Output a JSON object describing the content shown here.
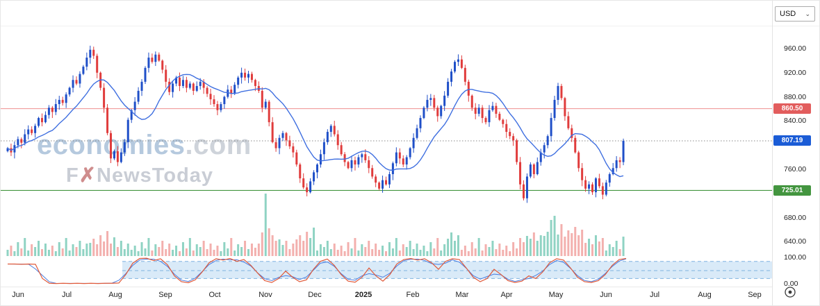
{
  "header": {
    "currency": "USD"
  },
  "watermark": {
    "brand": "economies",
    "brand_suffix": ".com",
    "tagline_f": "F",
    "tagline_x": "✗",
    "tagline_rest": "NewsToday"
  },
  "chart_data": {
    "type": "candlestick",
    "title": "",
    "xlabel": "",
    "ylabel": "",
    "price_levels": {
      "resistance": 860.5,
      "current": 807.19,
      "support": 725.01
    },
    "badges": [
      {
        "label": "860.50",
        "value": 860.5,
        "color_key": "resistance_badge"
      },
      {
        "label": "807.19",
        "value": 807.19,
        "color_key": "current_badge"
      },
      {
        "label": "725.01",
        "value": 725.01,
        "color_key": "support_badge"
      }
    ],
    "y_axis": {
      "price_labels": [
        "960.00",
        "920.00",
        "880.00",
        "840.00",
        "760.00",
        "680.00",
        "640.00"
      ],
      "price_values": [
        960,
        920,
        880,
        840,
        760,
        680,
        640
      ],
      "oscillator_labels": [
        "100.00",
        "0.00"
      ],
      "oscillator_values": [
        100,
        0
      ],
      "ylim": [
        620,
        990
      ]
    },
    "x_axis": {
      "labels": [
        "Jun",
        "Jul",
        "Aug",
        "Sep",
        "Oct",
        "Nov",
        "Dec",
        "2025",
        "Feb",
        "Mar",
        "Apr",
        "May",
        "Jun",
        "Jul",
        "Aug",
        "Sep"
      ],
      "positions": [
        25,
        95,
        165,
        237,
        308,
        381,
        452,
        522,
        593,
        664,
        728,
        799,
        871,
        941,
        1013,
        1085
      ]
    },
    "first_open": 790,
    "closes": [
      795,
      788,
      800,
      810,
      804,
      818,
      826,
      820,
      832,
      845,
      838,
      850,
      862,
      855,
      868,
      875,
      870,
      884,
      895,
      908,
      902,
      918,
      930,
      945,
      958,
      948,
      920,
      895,
      862,
      820,
      778,
      790,
      772,
      788,
      805,
      842,
      858,
      872,
      890,
      905,
      928,
      945,
      938,
      950,
      940,
      925,
      905,
      888,
      902,
      912,
      898,
      908,
      895,
      902,
      890,
      898,
      905,
      895,
      885,
      876,
      868,
      858,
      868,
      880,
      892,
      885,
      900,
      912,
      920,
      912,
      918,
      908,
      898,
      890,
      862,
      872,
      838,
      805,
      795,
      812,
      820,
      808,
      798,
      788,
      768,
      745,
      730,
      722,
      740,
      755,
      768,
      785,
      805,
      822,
      832,
      818,
      800,
      785,
      772,
      762,
      775,
      768,
      780,
      785,
      775,
      762,
      748,
      738,
      728,
      742,
      735,
      752,
      770,
      788,
      778,
      768,
      780,
      795,
      812,
      828,
      845,
      862,
      875,
      878,
      862,
      848,
      865,
      882,
      905,
      922,
      938,
      942,
      928,
      905,
      882,
      862,
      852,
      862,
      845,
      838,
      858,
      865,
      852,
      842,
      835,
      822,
      815,
      808,
      772,
      735,
      712,
      748,
      768,
      752,
      772,
      788,
      800,
      815,
      845,
      875,
      898,
      878,
      848,
      828,
      812,
      788,
      762,
      742,
      728,
      735,
      722,
      745,
      732,
      718,
      738,
      752,
      762,
      775,
      772,
      807.19
    ],
    "volumes": [
      9,
      15,
      7,
      20,
      11,
      26,
      8,
      17,
      13,
      22,
      10,
      18,
      9,
      15,
      7,
      20,
      11,
      26,
      8,
      17,
      13,
      22,
      10,
      18,
      19,
      25,
      17,
      30,
      21,
      36,
      18,
      27,
      13,
      22,
      10,
      18,
      9,
      15,
      7,
      20,
      11,
      26,
      8,
      17,
      13,
      22,
      10,
      18,
      9,
      15,
      7,
      20,
      11,
      26,
      8,
      17,
      13,
      22,
      10,
      18,
      9,
      15,
      7,
      20,
      11,
      26,
      8,
      17,
      13,
      22,
      10,
      18,
      12,
      18,
      34,
      90,
      40,
      30,
      22,
      24,
      16,
      22,
      10,
      18,
      24,
      30,
      22,
      35,
      26,
      41,
      8,
      17,
      13,
      22,
      10,
      18,
      9,
      15,
      7,
      20,
      11,
      26,
      8,
      17,
      13,
      22,
      10,
      18,
      9,
      15,
      7,
      20,
      11,
      26,
      8,
      17,
      13,
      22,
      10,
      18,
      9,
      15,
      7,
      20,
      11,
      26,
      8,
      17,
      25,
      34,
      22,
      30,
      9,
      15,
      7,
      20,
      11,
      26,
      8,
      17,
      13,
      22,
      10,
      18,
      9,
      15,
      7,
      20,
      11,
      26,
      20,
      29,
      25,
      34,
      22,
      30,
      29,
      35,
      52,
      58,
      31,
      46,
      28,
      37,
      33,
      42,
      30,
      38,
      19,
      25,
      17,
      30,
      21,
      26,
      8,
      17,
      13,
      22,
      10,
      28
    ],
    "oscillator": {
      "start_x": 10,
      "step_x": 10,
      "range": [
        0,
        100
      ],
      "band": {
        "upper": 85,
        "middle": 50,
        "lower": 20,
        "band_start_x": 175
      },
      "values": [
        75,
        75,
        74,
        75,
        74,
        20,
        2,
        1,
        2,
        1,
        2,
        1,
        2,
        1,
        2,
        2,
        3,
        35,
        78,
        96,
        97,
        88,
        95,
        72,
        30,
        8,
        4,
        15,
        45,
        80,
        95,
        90,
        96,
        85,
        92,
        70,
        40,
        12,
        5,
        20,
        48,
        25,
        8,
        15,
        55,
        85,
        94,
        70,
        35,
        10,
        6,
        25,
        60,
        30,
        10,
        35,
        75,
        92,
        96,
        90,
        95,
        80,
        55,
        85,
        95,
        92,
        60,
        25,
        8,
        20,
        55,
        35,
        12,
        5,
        10,
        30,
        20,
        45,
        80,
        95,
        90,
        60,
        25,
        8,
        5,
        12,
        35,
        70,
        92,
        96
      ]
    },
    "colors": {
      "up": "#1f4fc8",
      "down": "#e03c3c",
      "ma": "#3f6fe0",
      "vol_up": "#8fd3c3",
      "vol_down": "#f3b0ae",
      "resistance": "#f09c9c",
      "resistance_badge": "#e25d5d",
      "support": "#43953f",
      "support_badge": "#43953f",
      "current_line": "#888888",
      "current_badge": "#1b5cd6",
      "osc_main": "#e05a3a",
      "osc_signal": "#4a7de0",
      "band_fill": "#d9eaf8",
      "band_line": "#7fb2e0"
    }
  }
}
